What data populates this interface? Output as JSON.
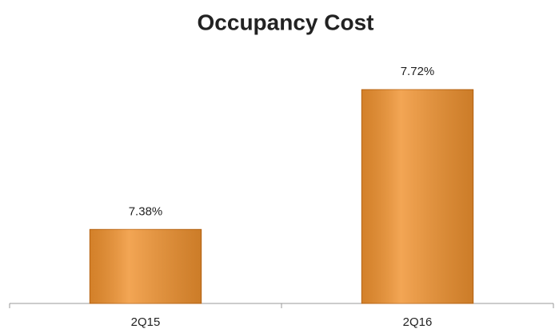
{
  "chart_data": {
    "type": "bar",
    "title": "Occupancy Cost",
    "categories": [
      "2Q15",
      "2Q16"
    ],
    "values": [
      7.38,
      7.72
    ],
    "value_labels": [
      "7.38%",
      "7.72%"
    ],
    "color": "#f0922f",
    "ylim": [
      7.2,
      7.8
    ]
  }
}
